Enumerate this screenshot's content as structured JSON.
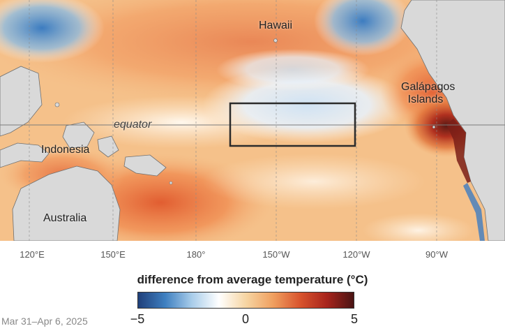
{
  "map": {
    "labels": {
      "hawaii": "Hawaii",
      "galapagos_line1": "Galápagos",
      "galapagos_line2": "Islands",
      "equator": "equator",
      "indonesia": "Indonesia",
      "australia": "Australia"
    },
    "longitude_ticks": [
      "120°E",
      "150°E",
      "180°",
      "150°W",
      "120°W",
      "90°W"
    ],
    "highlighted_region": "Niño 3.4 box",
    "colors": {
      "land": "#d9d9d9",
      "coast": "#6f6f6f",
      "box": "#2b2b2b"
    }
  },
  "legend": {
    "title": "difference from average temperature (°C)",
    "min_label": "−5",
    "mid_label": "0",
    "max_label": "5",
    "min_value": -5,
    "max_value": 5,
    "colors": [
      "#1f3f7a",
      "#3e7fc0",
      "#a9cdea",
      "#ffffff",
      "#f6d5a3",
      "#f0a060",
      "#d9552e",
      "#a8241c",
      "#4a1414"
    ]
  },
  "date": "Mar 31–Apr 6, 2025"
}
